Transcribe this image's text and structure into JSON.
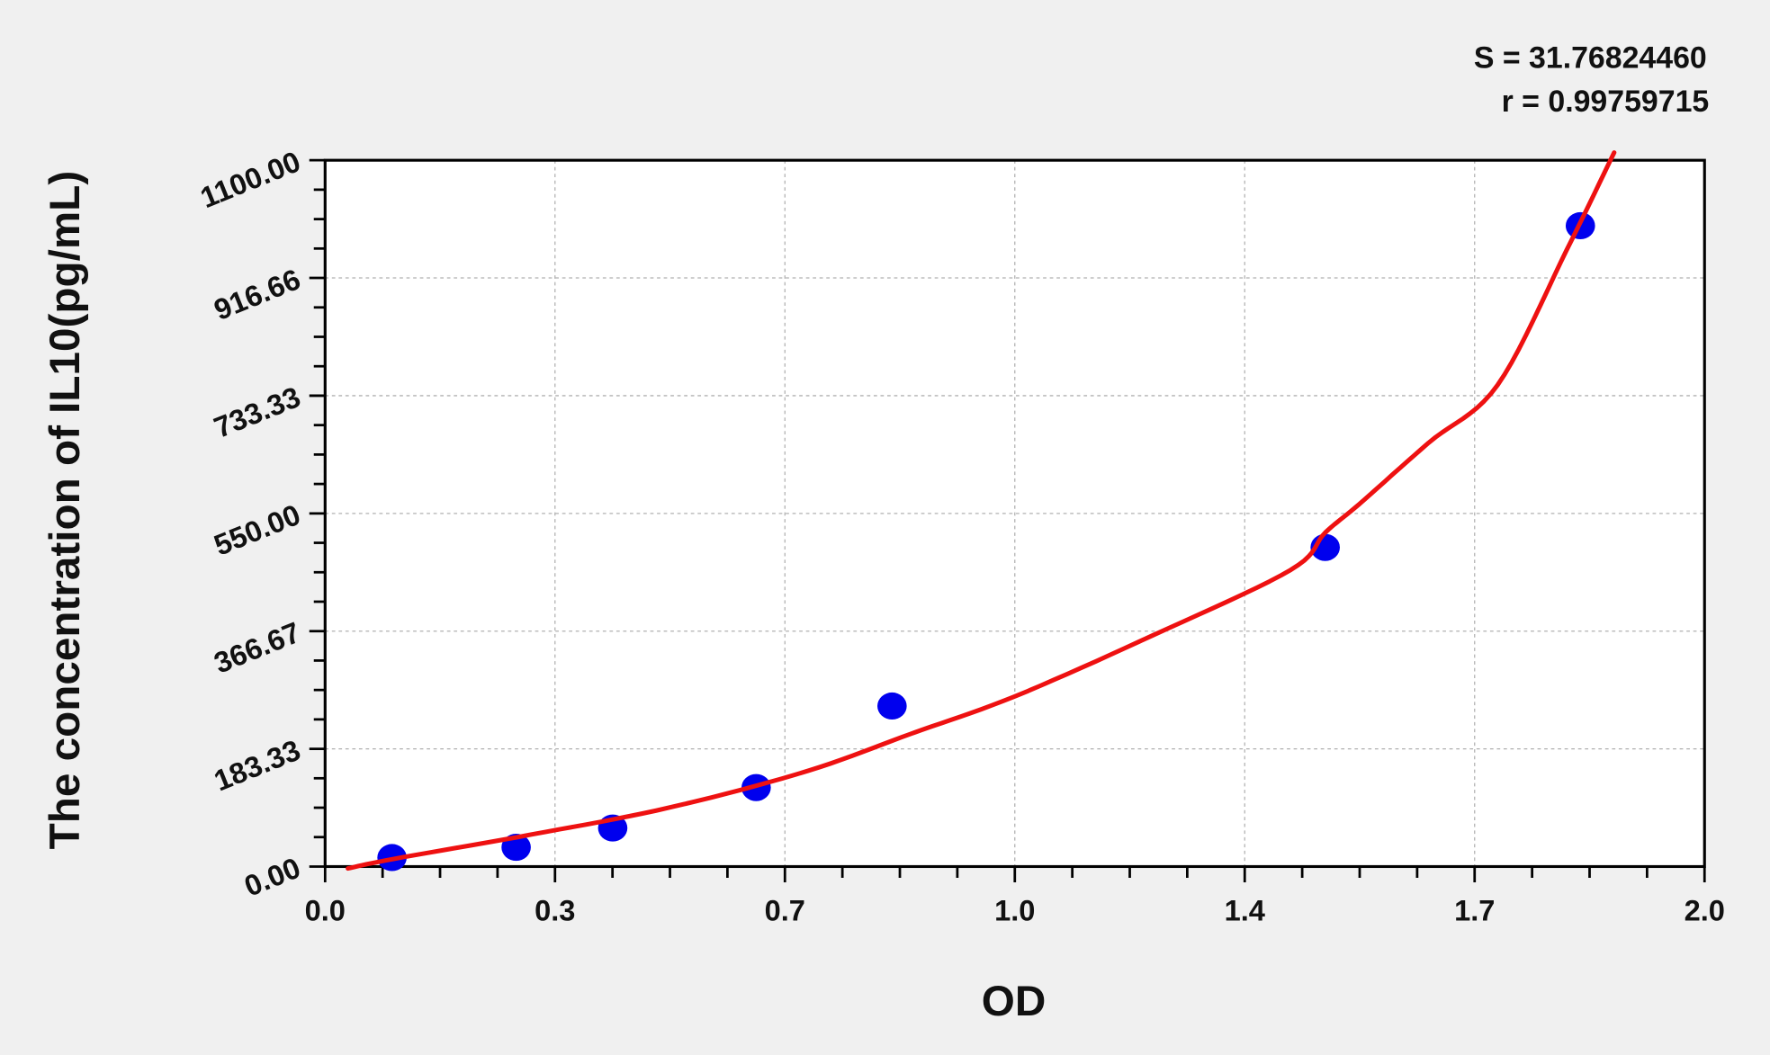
{
  "chart_data": {
    "type": "scatter",
    "xlabel": "OD",
    "ylabel": "The concentration of IL10(pg/mL)",
    "xlim": [
      0,
      2.0
    ],
    "ylim": [
      0,
      1100
    ],
    "x_ticks": [
      "0.0",
      "0.3",
      "0.7",
      "1.0",
      "1.4",
      "1.7",
      "2.0"
    ],
    "y_ticks": [
      "0.00",
      "183.33",
      "366.67",
      "550.00",
      "733.33",
      "916.66",
      "1100.00"
    ],
    "grid": true,
    "annotations": [
      "S = 31.76824460",
      "r = 0.99759715"
    ],
    "colors": {
      "points": "#0000ee",
      "fit_curve": "#ee1111",
      "background": "#f0f0f0",
      "plot_area": "#ffffff"
    },
    "points": {
      "x": [
        0.097,
        0.277,
        0.417,
        0.625,
        0.822,
        1.45,
        1.82
      ],
      "y": [
        14,
        30,
        60,
        123,
        250,
        497,
        998
      ]
    },
    "fit_curve": {
      "x": [
        0.033,
        0.1,
        0.3,
        0.5,
        0.7,
        0.85,
        1.0,
        1.2,
        1.4,
        1.45,
        1.5,
        1.6,
        1.7,
        1.8,
        1.869
      ],
      "y": [
        -3,
        12,
        50,
        92,
        149,
        207,
        265,
        360,
        462,
        520,
        565,
        660,
        750,
        960,
        1112
      ]
    }
  }
}
